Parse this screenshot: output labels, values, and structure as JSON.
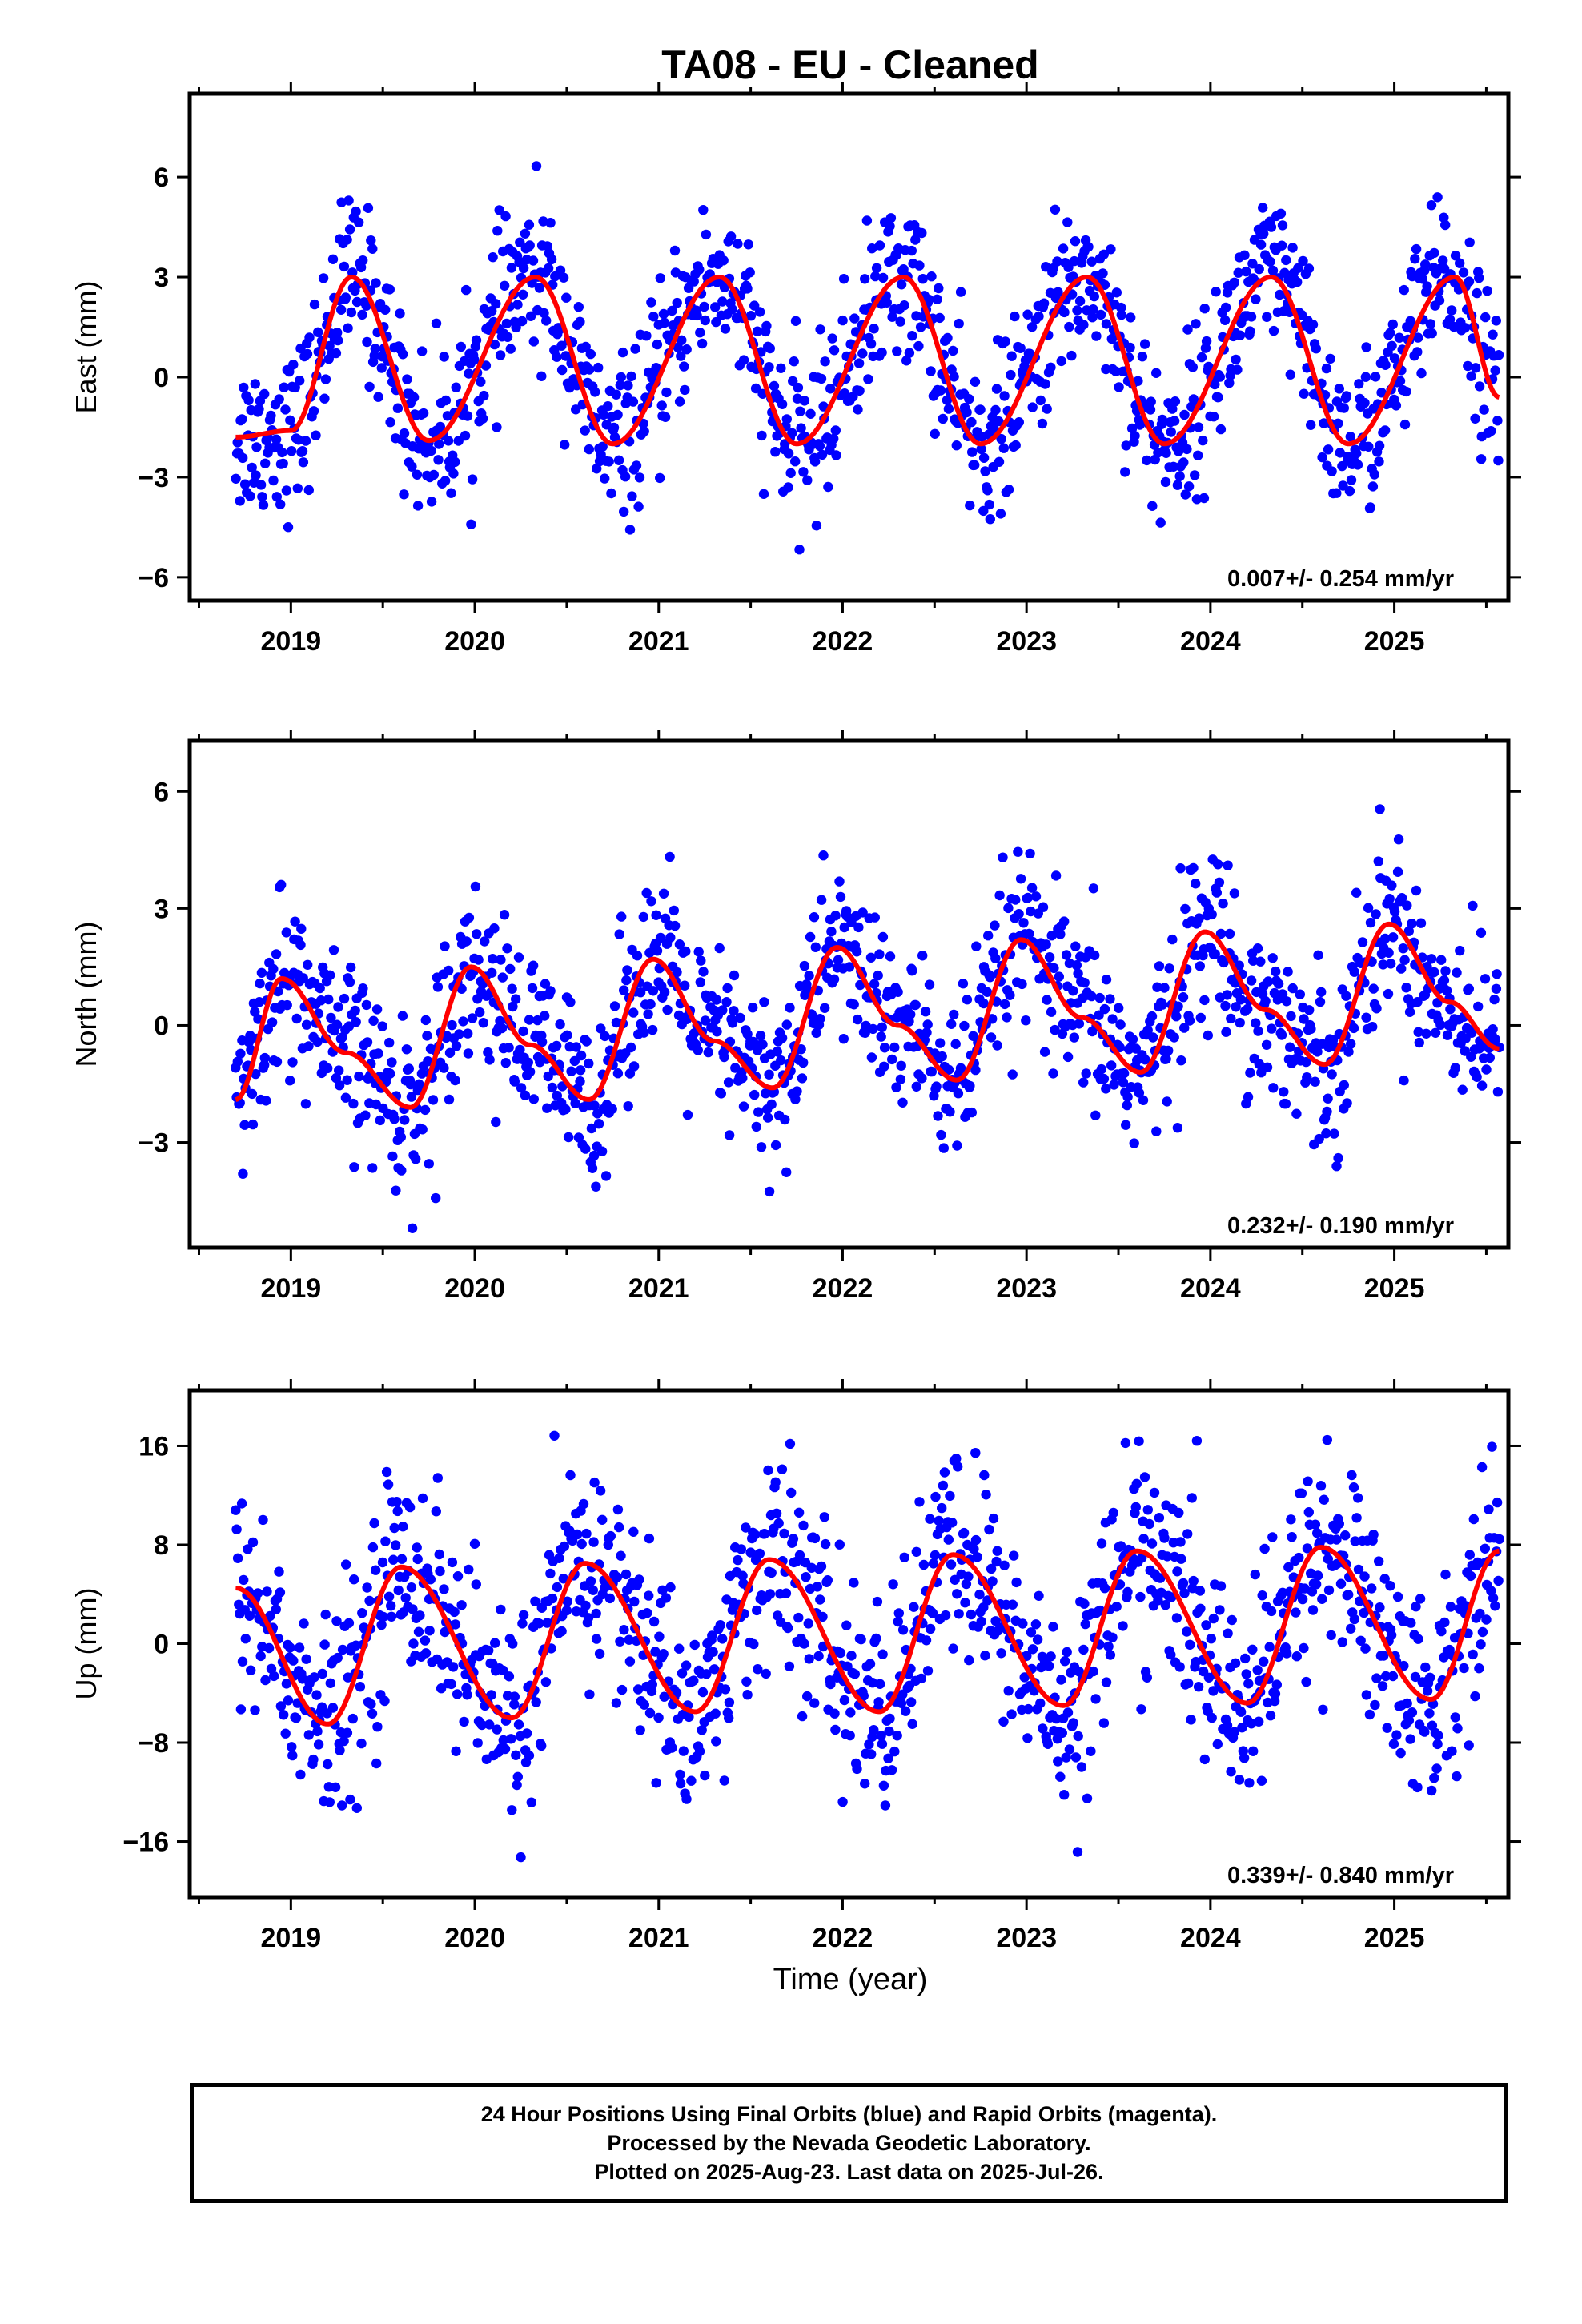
{
  "title": "TA08  - EU - Cleaned",
  "xlabel": "Time (year)",
  "colors": {
    "points": "#0000ff",
    "fit": "#ff0000",
    "axes": "#000000"
  },
  "caption": {
    "line1": "24 Hour Positions Using Final Orbits (blue) and Rapid Orbits (magenta).",
    "line2": "Processed by the Nevada Geodetic Laboratory.",
    "line3": "Plotted on 2025-Aug-23. Last data on 2025-Jul-26."
  },
  "chart_data": [
    {
      "type": "scatter",
      "name": "east",
      "ylabel": "East (mm)",
      "rate_label": "0.007+/- 0.254 mm/yr",
      "xlim": [
        2018.45,
        2025.62
      ],
      "ylim": [
        -6.7,
        8.5
      ],
      "xticks": [
        2019,
        2020,
        2021,
        2022,
        2023,
        2024,
        2025
      ],
      "yticks": [
        -6,
        -3,
        0,
        3,
        6
      ],
      "ytick_labels": [
        "−6",
        "−3",
        "0",
        "3",
        "6"
      ],
      "data_start": 2018.7,
      "data_end": 2025.57,
      "fit": {
        "offset": 0.5,
        "amplitude": 2.5,
        "peak_phase": 0.33,
        "shape": 1.0,
        "annual2": 0.0
      },
      "scatter_sd": 1.2,
      "fit_points": [
        [
          2018.7,
          -1.8
        ],
        [
          2019.0,
          -1.6
        ],
        [
          2019.33,
          3.0
        ],
        [
          2019.75,
          -1.9
        ],
        [
          2020.33,
          3.0
        ],
        [
          2020.75,
          -2.0
        ],
        [
          2021.33,
          3.0
        ],
        [
          2021.75,
          -2.0
        ],
        [
          2022.33,
          3.0
        ],
        [
          2022.75,
          -2.0
        ],
        [
          2023.33,
          3.0
        ],
        [
          2023.75,
          -2.0
        ],
        [
          2024.33,
          3.0
        ],
        [
          2024.75,
          -2.0
        ],
        [
          2025.33,
          3.0
        ],
        [
          2025.57,
          -0.6
        ]
      ]
    },
    {
      "type": "scatter",
      "name": "north",
      "ylabel": "North (mm)",
      "rate_label": "0.232+/- 0.190 mm/yr",
      "xlim": [
        2018.45,
        2025.62
      ],
      "ylim": [
        -5.7,
        7.3
      ],
      "xticks": [
        2019,
        2020,
        2021,
        2022,
        2023,
        2024,
        2025
      ],
      "yticks": [
        -3,
        0,
        3,
        6
      ],
      "ytick_labels": [
        "−3",
        "0",
        "3",
        "6"
      ],
      "data_start": 2018.7,
      "data_end": 2025.57,
      "fit": {
        "offset": 0.0,
        "amplitude": 1.6,
        "peak_phase": 0.98,
        "shape": 1.0,
        "annual2": 0.5,
        "trend": 0.232
      },
      "scatter_sd": 1.1,
      "fit_points": [
        [
          2018.7,
          -1.9
        ],
        [
          2018.95,
          1.2
        ],
        [
          2019.3,
          -0.7
        ],
        [
          2019.65,
          -2.1
        ],
        [
          2019.98,
          1.5
        ],
        [
          2020.3,
          -0.5
        ],
        [
          2020.62,
          -1.9
        ],
        [
          2020.97,
          1.7
        ],
        [
          2021.3,
          -0.4
        ],
        [
          2021.62,
          -1.6
        ],
        [
          2021.97,
          2.0
        ],
        [
          2022.3,
          0.0
        ],
        [
          2022.62,
          -1.4
        ],
        [
          2022.97,
          2.2
        ],
        [
          2023.3,
          0.2
        ],
        [
          2023.62,
          -1.2
        ],
        [
          2023.97,
          2.4
        ],
        [
          2024.3,
          0.4
        ],
        [
          2024.62,
          -1.0
        ],
        [
          2024.97,
          2.6
        ],
        [
          2025.3,
          0.6
        ],
        [
          2025.57,
          -0.6
        ]
      ]
    },
    {
      "type": "scatter",
      "name": "up",
      "ylabel": "Up (mm)",
      "rate_label": "0.339+/- 0.840 mm/yr",
      "xlim": [
        2018.45,
        2025.62
      ],
      "ylim": [
        -20.5,
        20.5
      ],
      "xticks": [
        2019,
        2020,
        2021,
        2022,
        2023,
        2024,
        2025
      ],
      "yticks": [
        -16,
        -8,
        0,
        8,
        16
      ],
      "ytick_labels": [
        "−16",
        "−8",
        "0",
        "8",
        "16"
      ],
      "data_start": 2018.7,
      "data_end": 2025.57,
      "fit": {
        "offset": 0.5,
        "amplitude": 6.0,
        "peak_phase": 0.6,
        "shape": 1.0,
        "annual2": 0.0
      },
      "scatter_sd": 4.2,
      "fit_points": [
        [
          2018.7,
          4.5
        ],
        [
          2019.2,
          -6.5
        ],
        [
          2019.6,
          6.2
        ],
        [
          2020.2,
          -6.0
        ],
        [
          2020.6,
          6.5
        ],
        [
          2021.2,
          -5.5
        ],
        [
          2021.6,
          6.8
        ],
        [
          2022.2,
          -5.5
        ],
        [
          2022.6,
          7.2
        ],
        [
          2023.2,
          -5.0
        ],
        [
          2023.6,
          7.5
        ],
        [
          2024.2,
          -4.8
        ],
        [
          2024.6,
          7.8
        ],
        [
          2025.2,
          -4.5
        ],
        [
          2025.57,
          7.5
        ]
      ]
    }
  ]
}
